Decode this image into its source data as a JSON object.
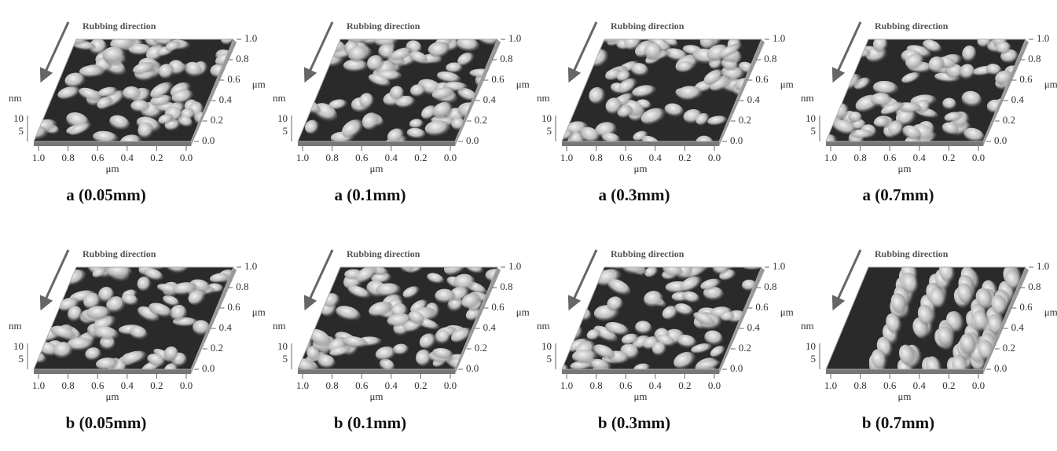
{
  "figure": {
    "panels": [
      {
        "caption": "a (0.05mm)",
        "direction_label": "Rubbing direction",
        "z_label": "nm",
        "z_ticks": [
          "10",
          "5"
        ],
        "x_ticks": [
          "1.0",
          "0.8",
          "0.6",
          "0.4",
          "0.2",
          "0.0"
        ],
        "x_label": "μm",
        "y_ticks": [
          "1.0",
          "0.8",
          "0.6",
          "0.4",
          "0.2",
          "0.0"
        ],
        "y_label": "μm"
      },
      {
        "caption": "a (0.1mm)",
        "direction_label": "Rubbing direction",
        "z_label": "nm",
        "z_ticks": [
          "10",
          "5"
        ],
        "x_ticks": [
          "1.0",
          "0.8",
          "0.6",
          "0.4",
          "0.2",
          "0.0"
        ],
        "x_label": "μm",
        "y_ticks": [
          "1.0",
          "0.8",
          "0.6",
          "0.4",
          "0.2",
          "0.0"
        ],
        "y_label": "μm"
      },
      {
        "caption": "a (0.3mm)",
        "direction_label": "Rubbing direction",
        "z_label": "nm",
        "z_ticks": [
          "10",
          "5"
        ],
        "x_ticks": [
          "1.0",
          "0.8",
          "0.6",
          "0.4",
          "0.2",
          "0.0"
        ],
        "x_label": "μm",
        "y_ticks": [
          "1.0",
          "0.8",
          "0.6",
          "0.4",
          "0.2",
          "0.0"
        ],
        "y_label": "μm"
      },
      {
        "caption": "a (0.7mm)",
        "direction_label": "Rubbing direction",
        "z_label": "nm",
        "z_ticks": [
          "10",
          "5"
        ],
        "x_ticks": [
          "1.0",
          "0.8",
          "0.6",
          "0.4",
          "0.2",
          "0.0"
        ],
        "x_label": "μm",
        "y_ticks": [
          "1.0",
          "0.8",
          "0.6",
          "0.4",
          "0.2",
          "0.0"
        ],
        "y_label": "μm"
      },
      {
        "caption": "b (0.05mm)",
        "direction_label": "Rubbing direction",
        "z_label": "nm",
        "z_ticks": [
          "10",
          "5"
        ],
        "x_ticks": [
          "1.0",
          "0.8",
          "0.6",
          "0.4",
          "0.2",
          "0.0"
        ],
        "x_label": "μm",
        "y_ticks": [
          "1.0",
          "0.8",
          "0.6",
          "0.4",
          "0.2",
          "0.0"
        ],
        "y_label": "μm"
      },
      {
        "caption": "b (0.1mm)",
        "direction_label": "Rubbing direction",
        "z_label": "nm",
        "z_ticks": [
          "10",
          "5"
        ],
        "x_ticks": [
          "1.0",
          "0.8",
          "0.6",
          "0.4",
          "0.2",
          "0.0"
        ],
        "x_label": "μm",
        "y_ticks": [
          "1.0",
          "0.8",
          "0.6",
          "0.4",
          "0.2",
          "0.0"
        ],
        "y_label": "μm"
      },
      {
        "caption": "b (0.3mm)",
        "direction_label": "Rubbing direction",
        "z_label": "nm",
        "z_ticks": [
          "10",
          "5"
        ],
        "x_ticks": [
          "1.0",
          "0.8",
          "0.6",
          "0.4",
          "0.2",
          "0.0"
        ],
        "x_label": "μm",
        "y_ticks": [
          "1.0",
          "0.8",
          "0.6",
          "0.4",
          "0.2",
          "0.0"
        ],
        "y_label": "μm"
      },
      {
        "caption": "b (0.7mm)",
        "direction_label": "Rubbing direction",
        "z_label": "nm",
        "z_ticks": [
          "10",
          "5"
        ],
        "x_ticks": [
          "1.0",
          "0.8",
          "0.6",
          "0.4",
          "0.2",
          "0.0"
        ],
        "x_label": "μm",
        "y_ticks": [
          "1.0",
          "0.8",
          "0.6",
          "0.4",
          "0.2",
          "0.0"
        ],
        "y_label": "μm"
      }
    ]
  }
}
